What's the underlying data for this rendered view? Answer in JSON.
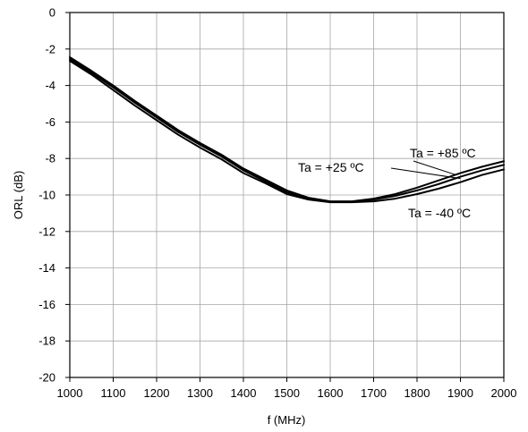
{
  "chart_data": {
    "type": "line",
    "title": "",
    "xlabel": "f (MHz)",
    "ylabel": "ORL (dB)",
    "xlim": [
      1000,
      2000
    ],
    "ylim": [
      -20,
      0
    ],
    "xticks": [
      1000,
      1100,
      1200,
      1300,
      1400,
      1500,
      1600,
      1700,
      1800,
      1900,
      2000
    ],
    "yticks": [
      0,
      -2,
      -4,
      -6,
      -8,
      -10,
      -12,
      -14,
      -16,
      -18,
      -20
    ],
    "grid": true,
    "legend": "none",
    "series": [
      {
        "x": [
          1000,
          1050,
          1100,
          1150,
          1200,
          1250,
          1300,
          1350,
          1400,
          1450,
          1500,
          1550,
          1600,
          1650,
          1700,
          1750,
          1800,
          1850,
          1900,
          1950,
          2000
        ],
        "y": [
          -2.45,
          -3.2,
          -4.0,
          -4.85,
          -5.65,
          -6.45,
          -7.15,
          -7.8,
          -8.55,
          -9.15,
          -9.75,
          -10.15,
          -10.35,
          -10.35,
          -10.2,
          -9.95,
          -9.6,
          -9.2,
          -8.8,
          -8.45,
          -8.15
        ]
      },
      {
        "x": [
          1000,
          1050,
          1100,
          1150,
          1200,
          1250,
          1300,
          1350,
          1400,
          1450,
          1500,
          1550,
          1600,
          1650,
          1700,
          1750,
          1800,
          1850,
          1900,
          1950,
          2000
        ],
        "y": [
          -2.55,
          -3.3,
          -4.1,
          -4.95,
          -5.75,
          -6.55,
          -7.25,
          -7.9,
          -8.65,
          -9.25,
          -9.85,
          -10.2,
          -10.38,
          -10.38,
          -10.25,
          -10.05,
          -9.75,
          -9.4,
          -9.0,
          -8.65,
          -8.35
        ]
      },
      {
        "x": [
          1000,
          1050,
          1100,
          1150,
          1200,
          1250,
          1300,
          1350,
          1400,
          1450,
          1500,
          1550,
          1600,
          1650,
          1700,
          1750,
          1800,
          1850,
          1900,
          1950,
          2000
        ],
        "y": [
          -2.65,
          -3.4,
          -4.25,
          -5.1,
          -5.9,
          -6.7,
          -7.4,
          -8.05,
          -8.8,
          -9.35,
          -9.95,
          -10.25,
          -10.4,
          -10.4,
          -10.35,
          -10.2,
          -9.95,
          -9.65,
          -9.3,
          -8.9,
          -8.6
        ]
      }
    ],
    "annotations": [
      {
        "text": "Ta = +85  ºC",
        "target_x": 1890,
        "target_y": -8.9
      },
      {
        "text": "Ta = +25  ºC",
        "target_x": 1900,
        "target_y": -9.1
      },
      {
        "text": "Ta = -40  ºC"
      }
    ]
  }
}
